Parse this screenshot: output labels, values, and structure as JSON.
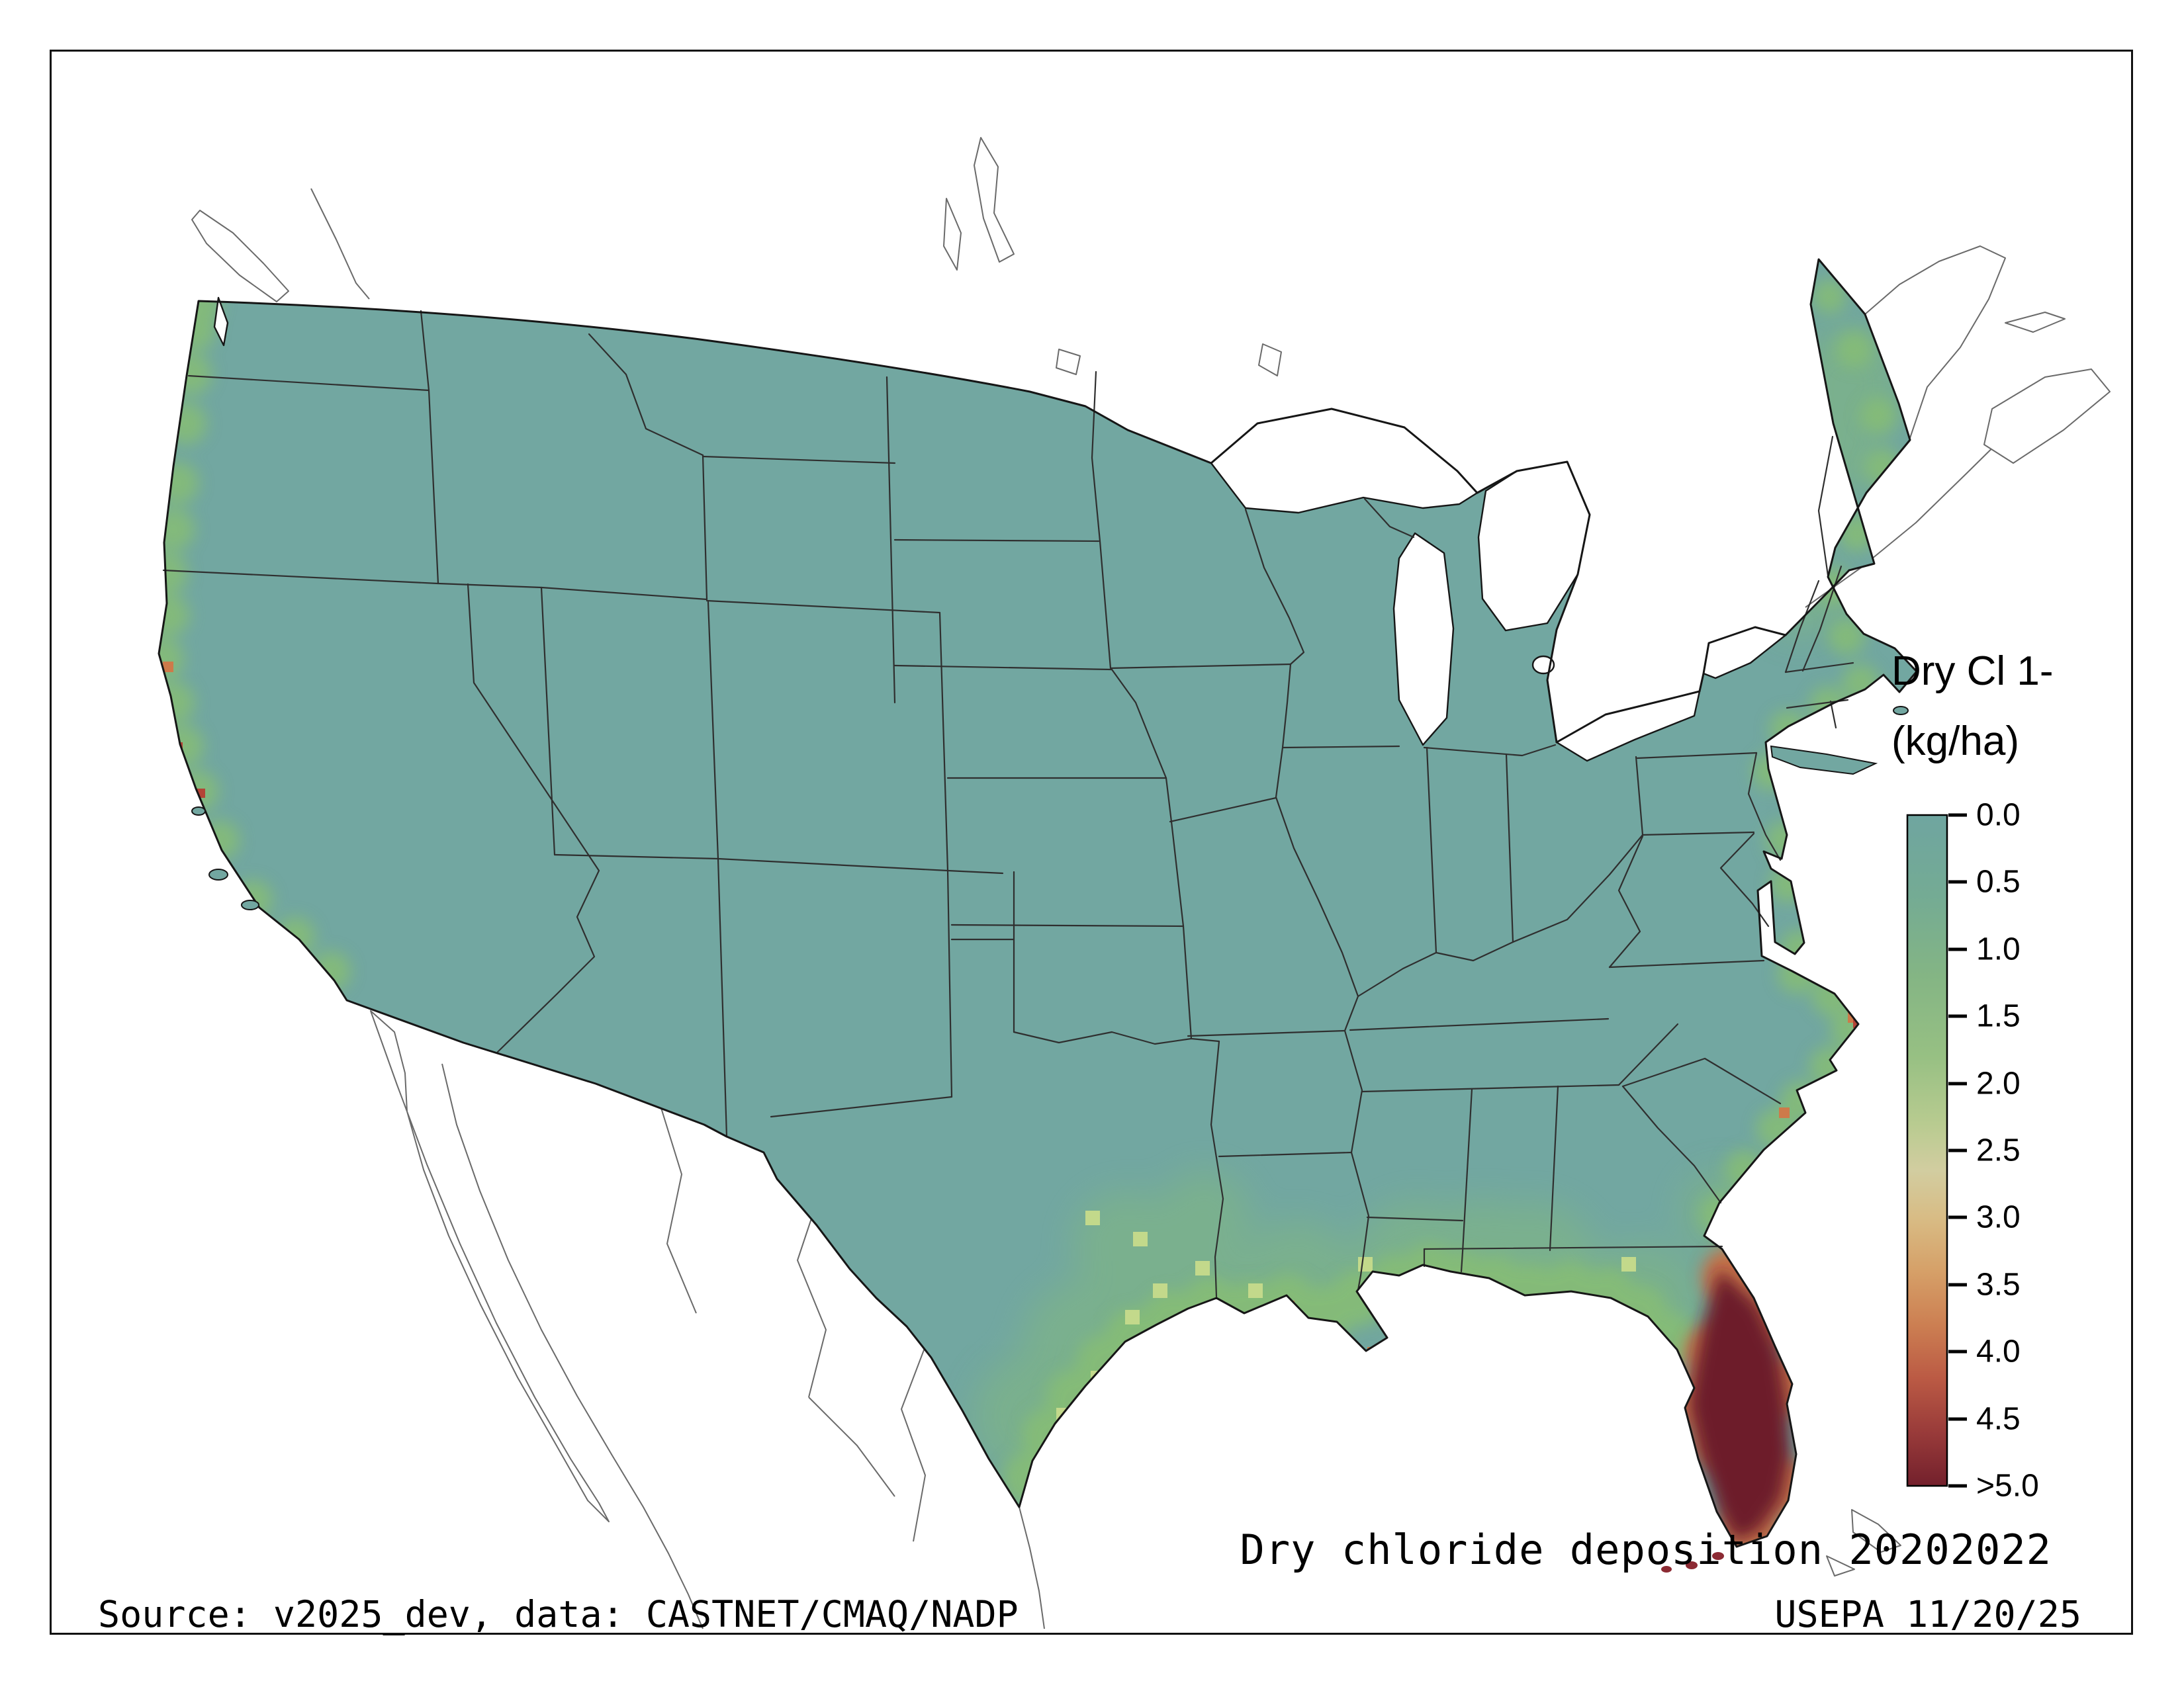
{
  "legend": {
    "title_line1": "Dry Cl 1-",
    "title_line2": "(kg/ha)",
    "ticks": [
      "0.0",
      "0.5",
      "1.0",
      "1.5",
      "2.0",
      "2.5",
      "3.0",
      "3.5",
      "4.0",
      "4.5",
      ">5.0"
    ],
    "gradient_stops": [
      [
        "0%",
        "#6fa5a0"
      ],
      [
        "12%",
        "#74ab94"
      ],
      [
        "24%",
        "#84b584"
      ],
      [
        "36%",
        "#97c083"
      ],
      [
        "46%",
        "#b8cb90"
      ],
      [
        "53%",
        "#d2cda0"
      ],
      [
        "60%",
        "#d8bc85"
      ],
      [
        "68%",
        "#d6a068"
      ],
      [
        "76%",
        "#cc7f52"
      ],
      [
        "84%",
        "#bb5a44"
      ],
      [
        "92%",
        "#993b3a"
      ],
      [
        "100%",
        "#73202c"
      ]
    ]
  },
  "caption": {
    "title": "Dry chloride deposition 20202022"
  },
  "footer": {
    "source": "Source: v2025_dev, data: CASTNET/CMAQ/NADP",
    "agency": "USEPA 11/20/25"
  },
  "colors": {
    "land_base": "#72a7a1",
    "coast_green": "#86bd74",
    "cell_yellow": "#c3d98b",
    "cell_orange": "#cd7a4a",
    "cell_red": "#b44436",
    "florida_orange": "#c96f45",
    "florida_maroon": "#6d1e2b",
    "border_line": "#2f2f2f",
    "outline": "#161616",
    "neighbor_line": "#6a6a6a",
    "frame": "#111111"
  }
}
